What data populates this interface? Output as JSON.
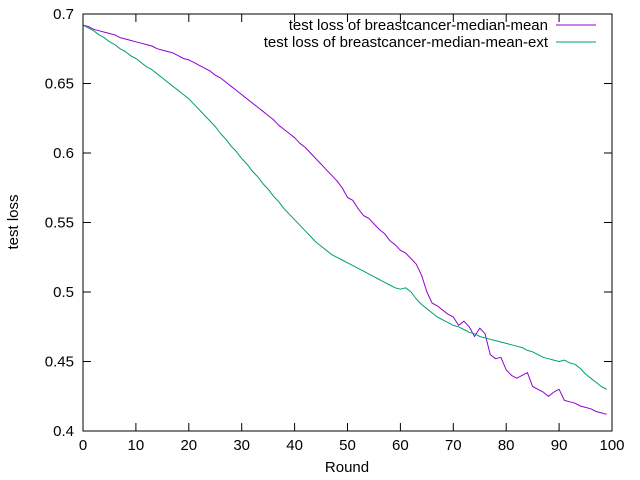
{
  "chart_data": {
    "type": "line",
    "title": "",
    "xlabel": "Round",
    "ylabel": "test loss",
    "xlim": [
      0,
      100
    ],
    "ylim": [
      0.4,
      0.7
    ],
    "xticks": [
      0,
      10,
      20,
      30,
      40,
      50,
      60,
      70,
      80,
      90,
      100
    ],
    "yticks": [
      0.4,
      0.45,
      0.5,
      0.55,
      0.6,
      0.65,
      0.7
    ],
    "xtick_labels": [
      "0",
      "10",
      "20",
      "30",
      "40",
      "50",
      "60",
      "70",
      "80",
      "90",
      "100"
    ],
    "ytick_labels": [
      "0.4",
      "0.45",
      "0.5",
      "0.55",
      "0.6",
      "0.65",
      "0.7"
    ],
    "grid": false,
    "legend_position": "top-right",
    "series": [
      {
        "name": "test loss of breastcancer-median-mean",
        "color": "#9400d3",
        "x": [
          0,
          1,
          2,
          3,
          4,
          5,
          6,
          7,
          8,
          9,
          10,
          11,
          12,
          13,
          14,
          15,
          16,
          17,
          18,
          19,
          20,
          21,
          22,
          23,
          24,
          25,
          26,
          27,
          28,
          29,
          30,
          31,
          32,
          33,
          34,
          35,
          36,
          37,
          38,
          39,
          40,
          41,
          42,
          43,
          44,
          45,
          46,
          47,
          48,
          49,
          50,
          51,
          52,
          53,
          54,
          55,
          56,
          57,
          58,
          59,
          60,
          61,
          62,
          63,
          64,
          65,
          66,
          67,
          68,
          69,
          70,
          71,
          72,
          73,
          74,
          75,
          76,
          77,
          78,
          79,
          80,
          81,
          82,
          83,
          84,
          85,
          86,
          87,
          88,
          89,
          90,
          91,
          92,
          93,
          94,
          95,
          96,
          97,
          98,
          99
        ],
        "y": [
          0.692,
          0.691,
          0.689,
          0.688,
          0.687,
          0.686,
          0.685,
          0.683,
          0.682,
          0.681,
          0.68,
          0.679,
          0.678,
          0.677,
          0.675,
          0.674,
          0.673,
          0.672,
          0.67,
          0.668,
          0.667,
          0.665,
          0.663,
          0.661,
          0.659,
          0.656,
          0.654,
          0.651,
          0.648,
          0.645,
          0.642,
          0.639,
          0.636,
          0.633,
          0.63,
          0.627,
          0.624,
          0.62,
          0.617,
          0.614,
          0.611,
          0.607,
          0.604,
          0.6,
          0.596,
          0.592,
          0.588,
          0.584,
          0.58,
          0.575,
          0.568,
          0.566,
          0.56,
          0.555,
          0.553,
          0.549,
          0.545,
          0.542,
          0.537,
          0.534,
          0.53,
          0.528,
          0.524,
          0.52,
          0.512,
          0.5,
          0.492,
          0.49,
          0.487,
          0.484,
          0.482,
          0.476,
          0.479,
          0.475,
          0.468,
          0.474,
          0.47,
          0.455,
          0.452,
          0.453,
          0.444,
          0.44,
          0.438,
          0.44,
          0.442,
          0.432,
          0.43,
          0.428,
          0.425,
          0.428,
          0.43,
          0.422,
          0.421,
          0.42,
          0.418,
          0.417,
          0.416,
          0.414,
          0.413,
          0.412
        ]
      },
      {
        "name": "test loss of breastcancer-median-mean-ext",
        "color": "#009e73",
        "x": [
          0,
          1,
          2,
          3,
          4,
          5,
          6,
          7,
          8,
          9,
          10,
          11,
          12,
          13,
          14,
          15,
          16,
          17,
          18,
          19,
          20,
          21,
          22,
          23,
          24,
          25,
          26,
          27,
          28,
          29,
          30,
          31,
          32,
          33,
          34,
          35,
          36,
          37,
          38,
          39,
          40,
          41,
          42,
          43,
          44,
          45,
          46,
          47,
          48,
          49,
          50,
          51,
          52,
          53,
          54,
          55,
          56,
          57,
          58,
          59,
          60,
          61,
          62,
          63,
          64,
          65,
          66,
          67,
          68,
          69,
          70,
          71,
          72,
          73,
          74,
          75,
          76,
          77,
          78,
          79,
          80,
          81,
          82,
          83,
          84,
          85,
          86,
          87,
          88,
          89,
          90,
          91,
          92,
          93,
          94,
          95,
          96,
          97,
          98,
          99
        ],
        "y": [
          0.692,
          0.69,
          0.688,
          0.685,
          0.683,
          0.68,
          0.678,
          0.675,
          0.673,
          0.67,
          0.668,
          0.665,
          0.662,
          0.66,
          0.657,
          0.654,
          0.651,
          0.648,
          0.645,
          0.642,
          0.639,
          0.635,
          0.631,
          0.627,
          0.623,
          0.619,
          0.614,
          0.61,
          0.605,
          0.601,
          0.596,
          0.592,
          0.587,
          0.583,
          0.578,
          0.574,
          0.569,
          0.565,
          0.56,
          0.556,
          0.552,
          0.548,
          0.544,
          0.54,
          0.536,
          0.533,
          0.53,
          0.527,
          0.525,
          0.523,
          0.521,
          0.519,
          0.517,
          0.515,
          0.513,
          0.511,
          0.509,
          0.507,
          0.505,
          0.503,
          0.502,
          0.503,
          0.5,
          0.495,
          0.491,
          0.488,
          0.485,
          0.482,
          0.48,
          0.478,
          0.476,
          0.475,
          0.473,
          0.471,
          0.47,
          0.468,
          0.467,
          0.466,
          0.465,
          0.464,
          0.463,
          0.462,
          0.461,
          0.46,
          0.458,
          0.457,
          0.455,
          0.453,
          0.452,
          0.451,
          0.45,
          0.451,
          0.449,
          0.448,
          0.445,
          0.441,
          0.438,
          0.435,
          0.432,
          0.43
        ]
      }
    ]
  }
}
